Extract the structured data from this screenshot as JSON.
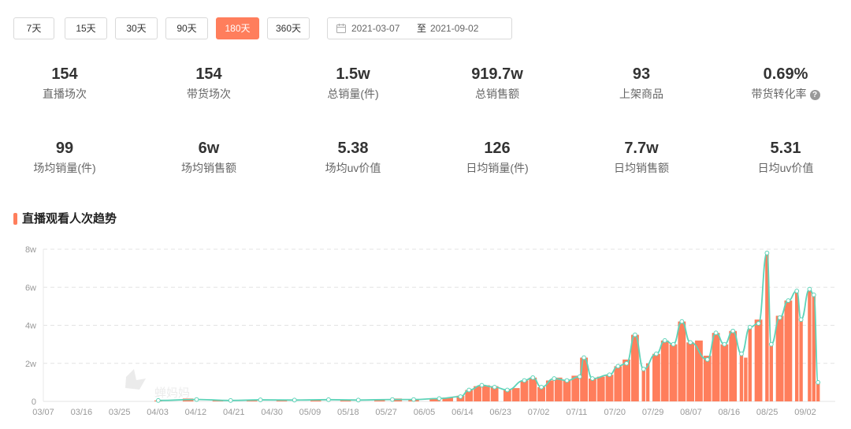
{
  "range_tabs": [
    {
      "label": "7天",
      "active": false
    },
    {
      "label": "15天",
      "active": false
    },
    {
      "label": "30天",
      "active": false
    },
    {
      "label": "90天",
      "active": false
    },
    {
      "label": "180天",
      "active": true
    },
    {
      "label": "360天",
      "active": false
    }
  ],
  "date_range": {
    "start": "2021-03-07",
    "separator": "至",
    "end": "2021-09-02"
  },
  "stats": [
    {
      "value": "154",
      "label": "直播场次"
    },
    {
      "value": "154",
      "label": "带货场次"
    },
    {
      "value": "1.5w",
      "label": "总销量(件)"
    },
    {
      "value": "919.7w",
      "label": "总销售额"
    },
    {
      "value": "93",
      "label": "上架商品"
    },
    {
      "value": "0.69%",
      "label": "带货转化率",
      "help": "?"
    },
    {
      "value": "99",
      "label": "场均销量(件)"
    },
    {
      "value": "6w",
      "label": "场均销售额"
    },
    {
      "value": "5.38",
      "label": "场均uv价值"
    },
    {
      "value": "126",
      "label": "日均销量(件)"
    },
    {
      "value": "7.7w",
      "label": "日均销售额"
    },
    {
      "value": "5.31",
      "label": "日均uv价值"
    }
  ],
  "section_title": "直播观看人次趋势",
  "watermark": "蝉妈妈",
  "colors": {
    "accent": "#ff7e5c",
    "line": "#5ed3b8",
    "grid": "#e3e3e3"
  },
  "chart_data": {
    "type": "bar",
    "title": "",
    "xlabel": "",
    "ylabel": "",
    "ylim": [
      0,
      8
    ],
    "y_unit": "w",
    "y_ticks": [
      "0",
      "2w",
      "4w",
      "6w",
      "8w"
    ],
    "x_tick_labels": [
      "03/07",
      "03/16",
      "03/25",
      "04/03",
      "04/12",
      "04/21",
      "04/30",
      "05/09",
      "05/18",
      "05/27",
      "06/05",
      "06/14",
      "06/23",
      "07/02",
      "07/11",
      "07/20",
      "07/29",
      "08/07",
      "08/16",
      "08/25",
      "09/02"
    ],
    "grid": true,
    "series_bar": [
      [
        "04/03",
        0.05
      ],
      [
        "04/10",
        0.15
      ],
      [
        "04/17",
        0.08
      ],
      [
        "04/25",
        0.06
      ],
      [
        "05/02",
        0.08
      ],
      [
        "05/10",
        0.07
      ],
      [
        "05/17",
        0.08
      ],
      [
        "05/25",
        0.1
      ],
      [
        "05/29",
        0.15
      ],
      [
        "06/02",
        0.1
      ],
      [
        "06/07",
        0.15
      ],
      [
        "06/10",
        0.2
      ],
      [
        "06/13",
        0.3
      ],
      [
        "06/15",
        0.6
      ],
      [
        "06/17",
        0.8
      ],
      [
        "06/19",
        0.85
      ],
      [
        "06/21",
        0.8
      ],
      [
        "06/24",
        0.6
      ],
      [
        "06/26",
        0.7
      ],
      [
        "06/28",
        1.1
      ],
      [
        "06/30",
        1.25
      ],
      [
        "07/02",
        0.75
      ],
      [
        "07/04",
        1.1
      ],
      [
        "07/06",
        1.25
      ],
      [
        "07/08",
        1.1
      ],
      [
        "07/10",
        1.35
      ],
      [
        "07/12",
        2.3
      ],
      [
        "07/14",
        1.2
      ],
      [
        "07/16",
        1.3
      ],
      [
        "07/18",
        1.4
      ],
      [
        "07/20",
        1.85
      ],
      [
        "07/22",
        2.2
      ],
      [
        "07/24",
        3.5
      ],
      [
        "07/26",
        1.7
      ],
      [
        "07/27",
        2.0
      ],
      [
        "07/29",
        2.5
      ],
      [
        "07/31",
        3.2
      ],
      [
        "08/02",
        3.0
      ],
      [
        "08/04",
        4.2
      ],
      [
        "08/06",
        3.1
      ],
      [
        "08/08",
        3.2
      ],
      [
        "08/10",
        2.4
      ],
      [
        "08/12",
        3.6
      ],
      [
        "08/14",
        3.0
      ],
      [
        "08/16",
        3.7
      ],
      [
        "08/18",
        2.6
      ],
      [
        "08/19",
        2.3
      ],
      [
        "08/20",
        3.9
      ],
      [
        "08/22",
        4.3
      ],
      [
        "08/24",
        7.8
      ],
      [
        "08/25",
        3.0
      ],
      [
        "08/27",
        4.5
      ],
      [
        "08/29",
        5.3
      ],
      [
        "08/31",
        5.8
      ],
      [
        "09/01",
        4.3
      ],
      [
        "09/03",
        5.9
      ],
      [
        "09/04",
        5.6
      ],
      [
        "09/05",
        1.0
      ]
    ],
    "series_line": [
      [
        "04/03",
        0.05
      ],
      [
        "04/12",
        0.1
      ],
      [
        "04/20",
        0.05
      ],
      [
        "04/27",
        0.08
      ],
      [
        "05/05",
        0.07
      ],
      [
        "05/13",
        0.09
      ],
      [
        "05/20",
        0.07
      ],
      [
        "05/28",
        0.1
      ],
      [
        "06/02",
        0.1
      ],
      [
        "06/08",
        0.15
      ],
      [
        "06/13",
        0.25
      ],
      [
        "06/15",
        0.6
      ],
      [
        "06/18",
        0.85
      ],
      [
        "06/21",
        0.75
      ],
      [
        "06/24",
        0.6
      ],
      [
        "06/28",
        1.1
      ],
      [
        "06/30",
        1.25
      ],
      [
        "07/02",
        0.75
      ],
      [
        "07/05",
        1.2
      ],
      [
        "07/08",
        1.1
      ],
      [
        "07/11",
        1.3
      ],
      [
        "07/12",
        2.3
      ],
      [
        "07/14",
        1.2
      ],
      [
        "07/18",
        1.4
      ],
      [
        "07/20",
        1.85
      ],
      [
        "07/22",
        2.0
      ],
      [
        "07/24",
        3.5
      ],
      [
        "07/26",
        1.7
      ],
      [
        "07/29",
        2.5
      ],
      [
        "07/31",
        3.2
      ],
      [
        "08/02",
        3.0
      ],
      [
        "08/04",
        4.2
      ],
      [
        "08/06",
        3.1
      ],
      [
        "08/10",
        2.2
      ],
      [
        "08/12",
        3.6
      ],
      [
        "08/14",
        3.0
      ],
      [
        "08/16",
        3.7
      ],
      [
        "08/18",
        2.5
      ],
      [
        "08/20",
        3.9
      ],
      [
        "08/22",
        4.1
      ],
      [
        "08/24",
        7.8
      ],
      [
        "08/25",
        3.0
      ],
      [
        "08/27",
        4.4
      ],
      [
        "08/29",
        5.3
      ],
      [
        "08/31",
        5.8
      ],
      [
        "09/01",
        4.3
      ],
      [
        "09/03",
        5.9
      ],
      [
        "09/04",
        5.6
      ],
      [
        "09/05",
        1.0
      ]
    ]
  }
}
